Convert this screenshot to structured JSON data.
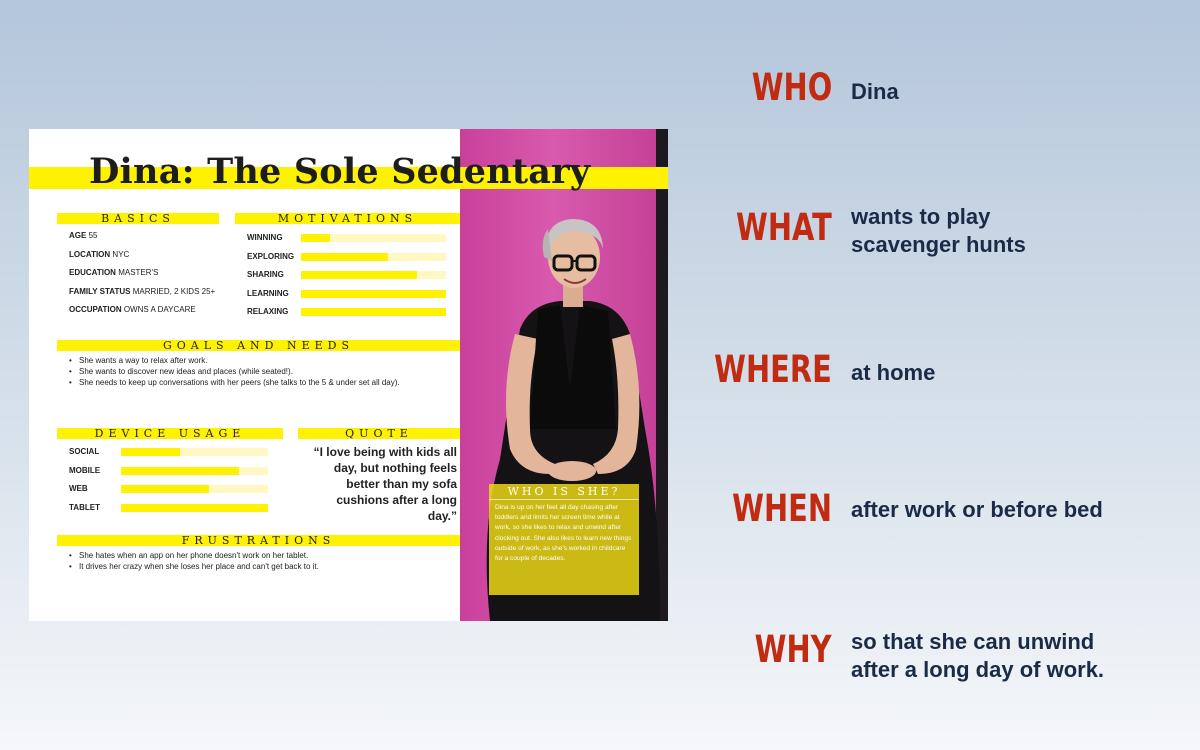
{
  "persona": {
    "title": "Dina: The Sole Sedentary",
    "basics": {
      "heading": "BASICS",
      "items": [
        {
          "label": "AGE",
          "value": "55"
        },
        {
          "label": "LOCATION",
          "value": "NYC"
        },
        {
          "label": "EDUCATION",
          "value": "MASTER'S"
        },
        {
          "label": "FAMILY STATUS",
          "value": "MARRIED, 2 KIDS 25+"
        },
        {
          "label": "OCCUPATION",
          "value": "OWNS A DAYCARE"
        }
      ]
    },
    "motivations": {
      "heading": "MOTIVATIONS",
      "items": [
        {
          "label": "WINNING",
          "level": 0.2
        },
        {
          "label": "EXPLORING",
          "level": 0.6
        },
        {
          "label": "SHARING",
          "level": 0.8
        },
        {
          "label": "LEARNING",
          "level": 1.0
        },
        {
          "label": "RELAXING",
          "level": 1.0
        }
      ]
    },
    "goals": {
      "heading": "GOALS AND NEEDS",
      "items": [
        "She wants a way to relax after work.",
        "She wants to discover new ideas and places (while seated!).",
        "She needs to keep up conversations with her peers (she talks to the 5 & under set all day)."
      ]
    },
    "device_usage": {
      "heading": "DEVICE USAGE",
      "items": [
        {
          "label": "SOCIAL",
          "level": 0.4
        },
        {
          "label": "MOBILE",
          "level": 0.8
        },
        {
          "label": "WEB",
          "level": 0.6
        },
        {
          "label": "TABLET",
          "level": 1.0
        }
      ]
    },
    "quote": {
      "heading": "QUOTE",
      "text": "“I love being with kids all day, but nothing feels better than my sofa cushions after a long day.”"
    },
    "frustrations": {
      "heading": "FRUSTRATIONS",
      "items": [
        "She hates when an app on her phone doesn't work on her tablet.",
        "It drives her crazy when she loses her place and can't get back to it."
      ]
    },
    "who_is_she": {
      "heading": "WHO IS SHE?",
      "text": "Dina is up on her feet all day chasing after toddlers and limits her screen time while at work, so she likes to relax and unwind after clocking out. She also likes to learn new things outside of work, as she's worked in childcare for a couple of decades."
    }
  },
  "five_ws": [
    {
      "label": "WHO",
      "value": "Dina"
    },
    {
      "label": "WHAT",
      "value": "wants to play\nscavenger hunts"
    },
    {
      "label": "WHERE",
      "value": "at home"
    },
    {
      "label": "WHEN",
      "value": "after work or before bed"
    },
    {
      "label": "WHY",
      "value": "so that she can unwind\nafter a long day of work."
    }
  ],
  "colors": {
    "accent_yellow": "#fff200",
    "w_label_red": "#c02b12",
    "w_value_navy": "#1a2b48",
    "photo_magenta": "#d24fa6"
  }
}
